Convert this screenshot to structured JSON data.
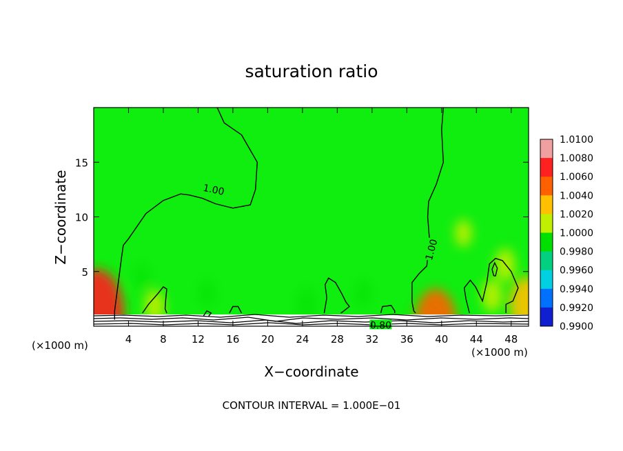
{
  "chart_data": {
    "type": "heatmap",
    "title": "saturation ratio",
    "xlabel": "X−coordinate",
    "ylabel": "Z−coordinate",
    "x_unit": "(×1000 m)",
    "y_unit": "(×1000 m)",
    "xlim": [
      0,
      50
    ],
    "ylim": [
      0,
      20
    ],
    "x_ticks": [
      4,
      8,
      12,
      16,
      20,
      24,
      28,
      32,
      36,
      40,
      44,
      48
    ],
    "y_ticks": [
      5,
      10,
      15
    ],
    "footer": "CONTOUR INTERVAL = 1.000E−01",
    "colorbar": {
      "levels": [
        "1.0100",
        "1.0080",
        "1.0060",
        "1.0040",
        "1.0020",
        "1.0000",
        "0.9980",
        "0.9960",
        "0.9940",
        "0.9920",
        "0.9900"
      ],
      "colors": [
        "#f0a0a0",
        "#ff2020",
        "#ff6000",
        "#ffc000",
        "#c0f000",
        "#00e000",
        "#00d080",
        "#00d0e0",
        "#0070ff",
        "#1020d0",
        "#8000c0"
      ]
    },
    "field_background_color": "#10ee10",
    "contour_labels": [
      {
        "text": "1.00",
        "x": 13.8,
        "y": 12.5
      },
      {
        "text": "1.00",
        "x": 38.8,
        "y": 7.0
      },
      {
        "text": "0.80",
        "x": 33.0,
        "y": 0.1
      }
    ],
    "contours": [
      {
        "level": 1.0,
        "points": [
          [
            2.4,
            0.6
          ],
          [
            2.4,
            1.4
          ],
          [
            2.6,
            2.6
          ],
          [
            3.2,
            6.3
          ],
          [
            3.4,
            7.4
          ],
          [
            4.0,
            8.0
          ],
          [
            6.0,
            10.3
          ],
          [
            8.0,
            11.5
          ],
          [
            10.0,
            12.1
          ],
          [
            11.0,
            12.0
          ],
          [
            12.5,
            11.7
          ],
          [
            14.0,
            11.2
          ],
          [
            16.0,
            10.8
          ],
          [
            18.0,
            11.1
          ],
          [
            18.6,
            12.5
          ],
          [
            18.8,
            15.0
          ],
          [
            17.0,
            17.5
          ],
          [
            15.0,
            18.6
          ],
          [
            14.2,
            20.0
          ]
        ]
      },
      {
        "level": 1.0,
        "points": [
          [
            40.2,
            20.0
          ],
          [
            40.0,
            18.0
          ],
          [
            40.2,
            15.0
          ],
          [
            39.4,
            13.0
          ],
          [
            38.5,
            11.4
          ],
          [
            38.4,
            10.0
          ],
          [
            38.6,
            8.0
          ],
          [
            38.3,
            5.5
          ],
          [
            37.4,
            4.8
          ],
          [
            36.6,
            4.0
          ],
          [
            36.6,
            2.2
          ],
          [
            36.8,
            1.4
          ],
          [
            37.0,
            1.2
          ]
        ]
      },
      {
        "level": 1.0,
        "points": [
          [
            43.2,
            1.2
          ],
          [
            42.8,
            2.5
          ],
          [
            42.6,
            3.5
          ],
          [
            43.3,
            4.2
          ],
          [
            43.9,
            3.6
          ],
          [
            44.7,
            2.3
          ],
          [
            45.2,
            4.0
          ],
          [
            45.5,
            5.7
          ],
          [
            46.2,
            6.2
          ],
          [
            47.0,
            6.0
          ],
          [
            48.0,
            5.0
          ],
          [
            48.8,
            3.5
          ],
          [
            48.2,
            2.3
          ],
          [
            47.4,
            2.0
          ],
          [
            47.4,
            1.2
          ]
        ]
      },
      {
        "level": 1.0,
        "points": [
          [
            46.0,
            4.6
          ],
          [
            45.8,
            5.2
          ],
          [
            46.1,
            5.8
          ],
          [
            46.4,
            5.3
          ],
          [
            46.2,
            4.6
          ],
          [
            46.0,
            4.6
          ]
        ]
      },
      {
        "level": 1.0,
        "points": [
          [
            5.6,
            1.2
          ],
          [
            6.3,
            2.0
          ],
          [
            7.4,
            3.0
          ],
          [
            8.0,
            3.6
          ],
          [
            8.4,
            3.4
          ],
          [
            8.3,
            2.6
          ],
          [
            8.2,
            1.6
          ],
          [
            8.4,
            1.2
          ]
        ]
      },
      {
        "level": 1.0,
        "points": [
          [
            26.5,
            1.2
          ],
          [
            26.8,
            2.6
          ],
          [
            26.6,
            3.8
          ],
          [
            27.0,
            4.4
          ],
          [
            27.8,
            4.0
          ],
          [
            28.5,
            3.0
          ],
          [
            29.0,
            2.2
          ],
          [
            29.4,
            1.8
          ],
          [
            28.6,
            1.3
          ],
          [
            28.4,
            1.2
          ]
        ]
      },
      {
        "level": 1.0,
        "points": [
          [
            15.6,
            1.2
          ],
          [
            16.0,
            1.8
          ],
          [
            16.6,
            1.8
          ],
          [
            17.0,
            1.2
          ]
        ]
      },
      {
        "level": 1.0,
        "points": [
          [
            33.0,
            1.2
          ],
          [
            33.2,
            1.8
          ],
          [
            34.2,
            1.9
          ],
          [
            34.6,
            1.4
          ],
          [
            34.6,
            1.2
          ]
        ]
      },
      {
        "level": 1.0,
        "points": [
          [
            12.6,
            0.9
          ],
          [
            13.0,
            1.4
          ],
          [
            13.5,
            1.2
          ],
          [
            13.2,
            0.9
          ]
        ]
      }
    ],
    "hotspots": [
      {
        "x": 0.3,
        "y": 1.2,
        "level": 1.006
      },
      {
        "x": 39.3,
        "y": 0.4,
        "level": 1.004
      },
      {
        "x": 49.8,
        "y": 2.0,
        "level": 1.003
      },
      {
        "x": 47.3,
        "y": 5.6,
        "level": 1.001
      },
      {
        "x": 7.0,
        "y": 1.8,
        "level": 1.001
      },
      {
        "x": 45.8,
        "y": 2.8,
        "level": 1.001
      },
      {
        "x": 42.5,
        "y": 8.5,
        "level": 1.0005
      },
      {
        "x": 5.5,
        "y": 4.5,
        "level": 0.9995
      },
      {
        "x": 13.0,
        "y": 3.0,
        "level": 0.9995
      },
      {
        "x": 24.5,
        "y": 2.0,
        "level": 0.999
      },
      {
        "x": 31.0,
        "y": 3.0,
        "level": 0.9995
      }
    ]
  }
}
